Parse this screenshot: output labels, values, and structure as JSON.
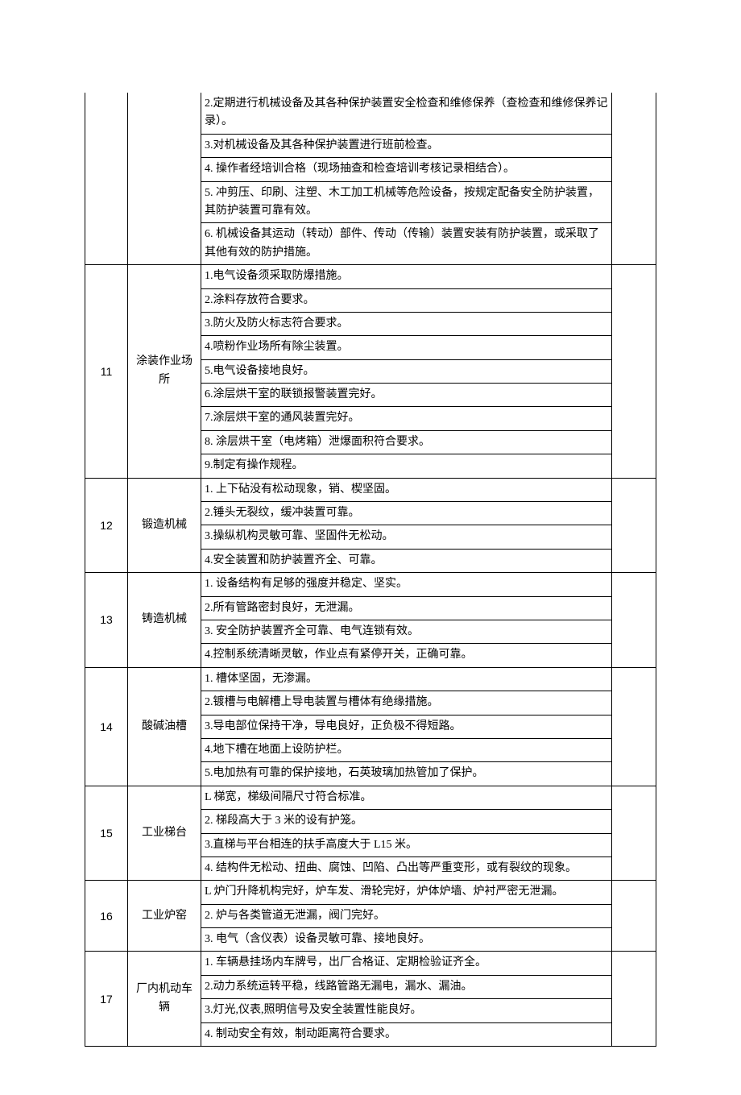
{
  "columns": {
    "num_width": 44,
    "cat_width": 82,
    "last_width": 46
  },
  "rows_top": [
    "2.定期进行机械设备及其各种保护装置安全检查和维修保养（查检查和维修保养记录）。",
    "3.对机械设备及其各种保护装置进行班前检查。",
    "4. 操作者经培训合格（现场抽查和检查培训考核记录相结合）。",
    "5. 冲剪压、印刷、注塑、木工加工机械等危险设备，按规定配备安全防护装置，其防护装置可靠有效。",
    "6. 机械设备其运动（转动）部件、传动（传输）装置安装有防护装置，或采取了其他有效的防护措施。"
  ],
  "sections": [
    {
      "num": "11",
      "cat": "涂装作业场所",
      "items": [
        "1.电气设备须采取防爆措施。",
        "2.涂料存放符合要求。",
        "3.防火及防火标志符合要求。",
        "4.喷粉作业场所有除尘装置。",
        "5.电气设备接地良好。",
        "6.涂层烘干室的联锁报警装置完好。",
        "7.涂层烘干室的通风装置完好。",
        "8. 涂层烘干室（电烤箱）泄爆面积符合要求。",
        "9.制定有操作规程。"
      ]
    },
    {
      "num": "12",
      "cat": "锻造机械",
      "items": [
        "1. 上下砧没有松动现象，销、楔坚固。",
        "2.锤头无裂纹，缓冲装置可靠。",
        "3.操纵机构灵敏可靠、坚固件无松动。",
        "4.安全装置和防护装置齐全、可靠。"
      ]
    },
    {
      "num": "13",
      "cat": "铸造机械",
      "items": [
        "1. 设备结构有足够的强度并稳定、坚实。",
        "2.所有管路密封良好，无泄漏。",
        "3. 安全防护装置齐全可靠、电气连锁有效。",
        "4.控制系统清晰灵敏，作业点有紧停开关，正确可靠。"
      ]
    },
    {
      "num": "14",
      "cat": "酸碱油槽",
      "items": [
        "1. 槽体坚固，无渗漏。",
        "2.镀槽与电解槽上导电装置与槽体有绝缘措施。",
        "3.导电部位保持干净，导电良好，正负极不得短路。",
        "4.地下槽在地面上设防护栏。",
        "5.电加热有可靠的保护接地，石英玻璃加热管加了保护。"
      ]
    },
    {
      "num": "15",
      "cat": "工业梯台",
      "items": [
        "L 梯宽，梯级间隔尺寸符合标准。",
        "2. 梯段高大于 3 米的设有护笼。",
        "3.直梯与平台相连的扶手高度大于 L15 米。",
        "4. 结构件无松动、扭曲、腐蚀、凹陷、凸出等严重变形，或有裂纹的现象。"
      ]
    },
    {
      "num": "16",
      "cat": "工业炉窑",
      "items": [
        "L 炉门升降机构完好，炉车发、滑轮完好，炉体炉墙、炉衬严密无泄漏。",
        "2. 炉与各类管道无泄漏，阀门完好。",
        "3. 电气（含仪表）设备灵敏可靠、接地良好。"
      ]
    },
    {
      "num": "17",
      "cat": "厂内机动车辆",
      "items": [
        "1. 车辆悬挂场内车牌号，出厂合格证、定期检验证齐全。",
        "2.动力系统运转平稳，线路管路无漏电，漏水、漏油。",
        "3.灯光,仪表,照明信号及安全装置性能良好。",
        "4. 制动安全有效，制动距离符合要求。"
      ]
    }
  ]
}
